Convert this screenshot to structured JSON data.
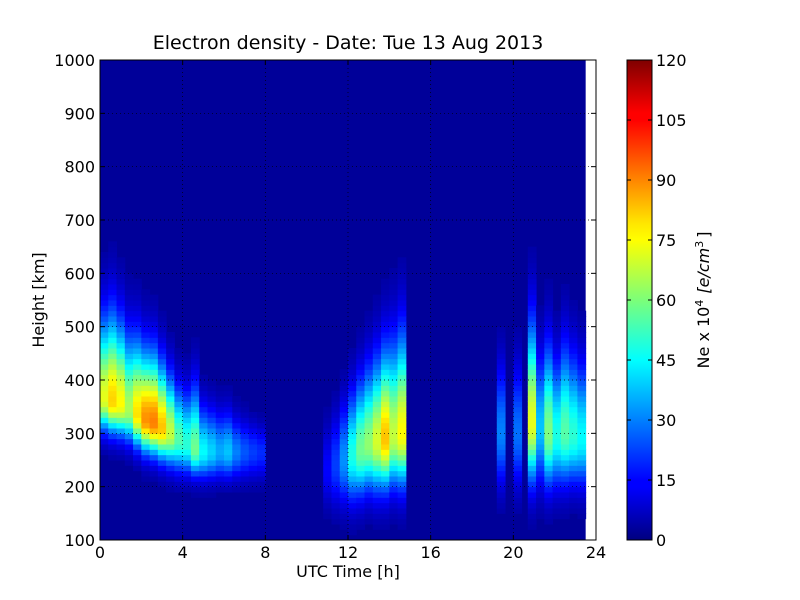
{
  "chart_data": {
    "type": "heatmap",
    "title": "Electron density - Date: Tue 13 Aug 2013",
    "xlabel": "UTC Time [h]",
    "ylabel": "Height [km]",
    "xlim": [
      0,
      24
    ],
    "ylim": [
      100,
      1000
    ],
    "x_ticks": [
      "0",
      "4",
      "8",
      "12",
      "16",
      "20",
      "24"
    ],
    "y_ticks": [
      "100",
      "200",
      "300",
      "400",
      "500",
      "600",
      "700",
      "800",
      "900",
      "1000"
    ],
    "colorbar": {
      "label_prefix": "Ne x 10",
      "label_exp": "4",
      "label_unit": "[e/cm",
      "label_unit_exp": "3",
      "label_close": "]",
      "range": [
        0,
        120
      ],
      "ticks": [
        "0",
        "15",
        "30",
        "45",
        "60",
        "75",
        "90",
        "105",
        "120"
      ],
      "colormap": "jet"
    },
    "grid": true,
    "data_end_hour": 23.5,
    "nan_color": "#ffffff",
    "background_value": 3,
    "profiles": [
      {
        "t": 0.2,
        "peak": 72,
        "hmax": 365,
        "width_low": 55,
        "width_high": 140
      },
      {
        "t": 0.6,
        "peak": 80,
        "hmax": 360,
        "width_low": 55,
        "width_high": 150
      },
      {
        "t": 1.0,
        "peak": 75,
        "hmax": 355,
        "width_low": 55,
        "width_high": 140
      },
      {
        "t": 1.4,
        "peak": 65,
        "hmax": 345,
        "width_low": 55,
        "width_high": 130
      },
      {
        "t": 1.8,
        "peak": 78,
        "hmax": 335,
        "width_low": 55,
        "width_high": 130
      },
      {
        "t": 2.2,
        "peak": 88,
        "hmax": 325,
        "width_low": 55,
        "width_high": 120
      },
      {
        "t": 2.6,
        "peak": 90,
        "hmax": 320,
        "width_low": 55,
        "width_high": 120
      },
      {
        "t": 3.0,
        "peak": 82,
        "hmax": 310,
        "width_low": 55,
        "width_high": 110
      },
      {
        "t": 3.4,
        "peak": 68,
        "hmax": 300,
        "width_low": 55,
        "width_high": 100
      },
      {
        "t": 3.8,
        "peak": 55,
        "hmax": 290,
        "width_low": 55,
        "width_high": 90
      },
      {
        "t": 4.2,
        "peak": 50,
        "hmax": 280,
        "width_low": 50,
        "width_high": 90
      },
      {
        "t": 4.6,
        "peak": 58,
        "hmax": 270,
        "width_low": 45,
        "width_high": 110
      },
      {
        "t": 5.0,
        "peak": 45,
        "hmax": 265,
        "width_low": 45,
        "width_high": 80
      },
      {
        "t": 5.4,
        "peak": 40,
        "hmax": 265,
        "width_low": 45,
        "width_high": 75
      },
      {
        "t": 5.8,
        "peak": 35,
        "hmax": 265,
        "width_low": 45,
        "width_high": 70
      },
      {
        "t": 6.2,
        "peak": 38,
        "hmax": 265,
        "width_low": 45,
        "width_high": 70
      },
      {
        "t": 6.6,
        "peak": 30,
        "hmax": 265,
        "width_low": 45,
        "width_high": 60
      },
      {
        "t": 7.0,
        "peak": 25,
        "hmax": 265,
        "width_low": 45,
        "width_high": 55
      },
      {
        "t": 7.4,
        "peak": 22,
        "hmax": 265,
        "width_low": 45,
        "width_high": 50
      },
      {
        "t": 7.8,
        "peak": 20,
        "hmax": 265,
        "width_low": 45,
        "width_high": 45
      },
      {
        "t": 11.0,
        "peak": 15,
        "hmax": 230,
        "width_low": 60,
        "width_high": 80
      },
      {
        "t": 11.4,
        "peak": 22,
        "hmax": 240,
        "width_low": 70,
        "width_high": 90
      },
      {
        "t": 11.8,
        "peak": 32,
        "hmax": 250,
        "width_low": 75,
        "width_high": 100
      },
      {
        "t": 12.2,
        "peak": 48,
        "hmax": 260,
        "width_low": 80,
        "width_high": 110
      },
      {
        "t": 12.6,
        "peak": 58,
        "hmax": 270,
        "width_low": 80,
        "width_high": 120
      },
      {
        "t": 13.0,
        "peak": 62,
        "hmax": 280,
        "width_low": 80,
        "width_high": 130
      },
      {
        "t": 13.4,
        "peak": 70,
        "hmax": 285,
        "width_low": 85,
        "width_high": 140
      },
      {
        "t": 13.8,
        "peak": 82,
        "hmax": 290,
        "width_low": 85,
        "width_high": 150
      },
      {
        "t": 14.2,
        "peak": 68,
        "hmax": 295,
        "width_low": 85,
        "width_high": 160
      },
      {
        "t": 14.6,
        "peak": 75,
        "hmax": 300,
        "width_low": 90,
        "width_high": 170
      },
      {
        "t": 19.4,
        "peak": 30,
        "hmax": 300,
        "width_low": 90,
        "width_high": 120
      },
      {
        "t": 20.2,
        "peak": 28,
        "hmax": 300,
        "width_low": 90,
        "width_high": 120
      },
      {
        "t": 20.9,
        "peak": 72,
        "hmax": 320,
        "width_low": 100,
        "width_high": 170
      },
      {
        "t": 21.3,
        "peak": 38,
        "hmax": 310,
        "width_low": 95,
        "width_high": 130
      },
      {
        "t": 21.7,
        "peak": 60,
        "hmax": 300,
        "width_low": 90,
        "width_high": 150
      },
      {
        "t": 22.1,
        "peak": 48,
        "hmax": 295,
        "width_low": 85,
        "width_high": 130
      },
      {
        "t": 22.5,
        "peak": 55,
        "hmax": 300,
        "width_low": 85,
        "width_high": 150
      },
      {
        "t": 22.9,
        "peak": 50,
        "hmax": 295,
        "width_low": 80,
        "width_high": 140
      },
      {
        "t": 23.3,
        "peak": 45,
        "hmax": 290,
        "width_low": 80,
        "width_high": 130
      }
    ]
  }
}
